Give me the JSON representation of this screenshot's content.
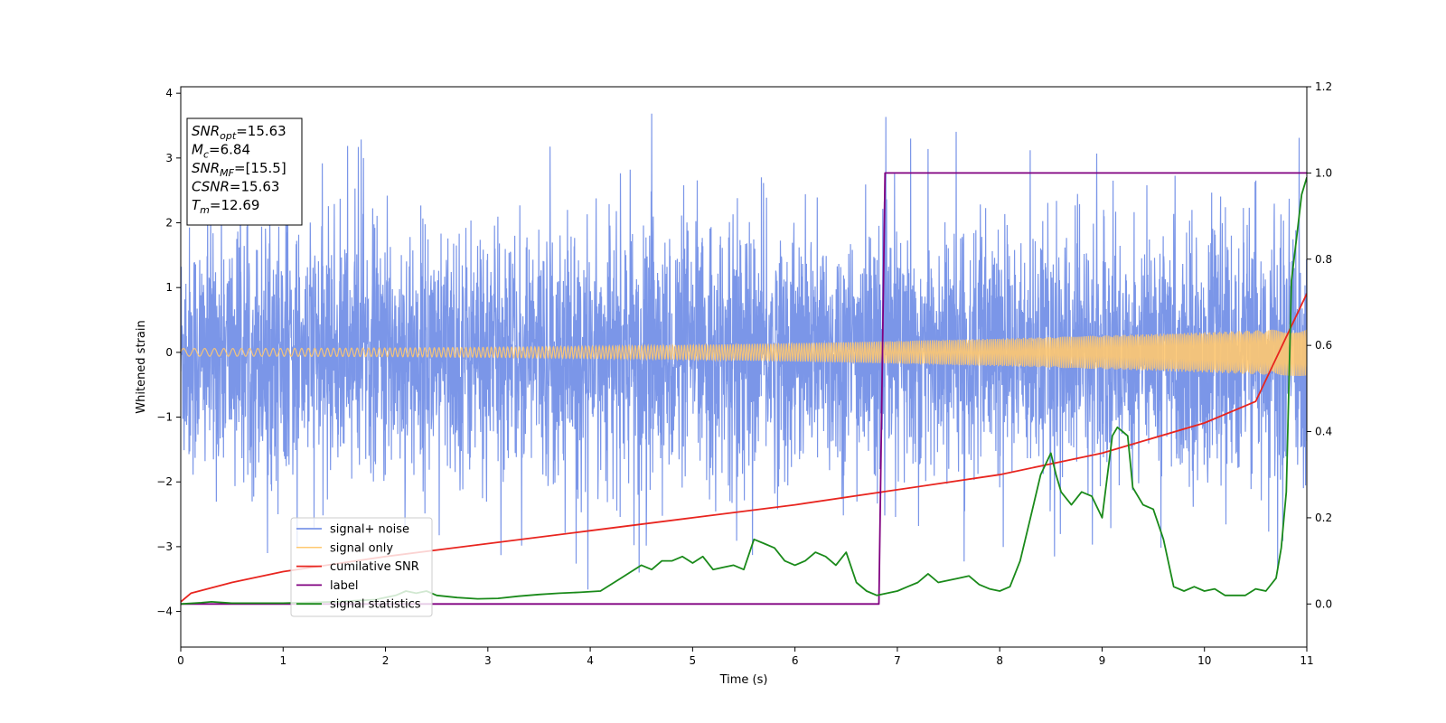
{
  "chart_data": {
    "type": "line",
    "xlabel": "Time (s)",
    "ylabel": "Whitened strain",
    "xlim": [
      0,
      11
    ],
    "ylim_left": [
      -4.55,
      4.1
    ],
    "ylim_right": [
      -0.1,
      1.2
    ],
    "x_ticks": [
      0,
      1,
      2,
      3,
      4,
      5,
      6,
      7,
      8,
      9,
      10,
      11
    ],
    "y_ticks_left": [
      -4,
      -3,
      -2,
      -1,
      0,
      1,
      2,
      3,
      4
    ],
    "y_ticks_right": [
      0.0,
      0.2,
      0.4,
      0.6,
      0.8,
      1.0,
      1.2
    ],
    "grid": false,
    "legend_placement": "lower-left",
    "annotation": [
      {
        "main": "SNR",
        "sub": "opt",
        "value": "=15.63"
      },
      {
        "main": "M",
        "sub": "c",
        "value": "=6.84"
      },
      {
        "main": "SNR",
        "sub": "MF",
        "value": "=[15.5]"
      },
      {
        "main": "CSNR",
        "sub": "",
        "value": "=15.63"
      },
      {
        "main": "T",
        "sub": "m",
        "value": "=12.69"
      }
    ],
    "series": [
      {
        "name": "signal+ noise",
        "color": "#7b96e8",
        "axis": "left",
        "kind": "noise",
        "std": 0.95,
        "spikes_max": 3.7,
        "spikes_min": -4.2
      },
      {
        "name": "signal only",
        "color": "#ffc870",
        "axis": "left",
        "kind": "chirp",
        "amplitude_start": 0.06,
        "amplitude_end": 0.37
      },
      {
        "name": "cumilative SNR",
        "color": "#e8251f",
        "axis": "right",
        "x": [
          0,
          0.1,
          0.5,
          1,
          2,
          3,
          4,
          5,
          6,
          7,
          8,
          9,
          10,
          10.5,
          11
        ],
        "y": [
          0.005,
          0.025,
          0.05,
          0.075,
          0.11,
          0.14,
          0.17,
          0.2,
          0.23,
          0.265,
          0.3,
          0.35,
          0.42,
          0.47,
          0.72
        ]
      },
      {
        "name": "label",
        "color": "#800080",
        "axis": "right",
        "x": [
          0,
          6.82,
          6.88,
          11
        ],
        "y": [
          0.0,
          0.0,
          1.0,
          1.0
        ]
      },
      {
        "name": "signal statistics",
        "color": "#1a8a1a",
        "axis": "right",
        "x": [
          0,
          0.2,
          0.3,
          0.5,
          1,
          1.5,
          1.9,
          2.1,
          2.2,
          2.3,
          2.4,
          2.5,
          2.7,
          2.9,
          3.1,
          3.3,
          3.5,
          3.7,
          3.9,
          4.1,
          4.3,
          4.5,
          4.6,
          4.7,
          4.8,
          4.9,
          5.0,
          5.1,
          5.2,
          5.3,
          5.4,
          5.5,
          5.6,
          5.7,
          5.8,
          5.9,
          6.0,
          6.1,
          6.2,
          6.3,
          6.4,
          6.5,
          6.6,
          6.7,
          6.8,
          6.9,
          7.0,
          7.1,
          7.2,
          7.3,
          7.4,
          7.5,
          7.6,
          7.7,
          7.8,
          7.9,
          8.0,
          8.1,
          8.2,
          8.3,
          8.4,
          8.5,
          8.55,
          8.6,
          8.7,
          8.8,
          8.9,
          9.0,
          9.1,
          9.15,
          9.2,
          9.25,
          9.3,
          9.4,
          9.5,
          9.6,
          9.7,
          9.8,
          9.9,
          10.0,
          10.1,
          10.2,
          10.3,
          10.4,
          10.5,
          10.6,
          10.7,
          10.75,
          10.8,
          10.85,
          10.9,
          10.95,
          11.0
        ],
        "y": [
          0.0,
          0.003,
          0.005,
          0.002,
          0.002,
          0.005,
          0.01,
          0.02,
          0.03,
          0.025,
          0.03,
          0.02,
          0.015,
          0.012,
          0.013,
          0.018,
          0.022,
          0.025,
          0.027,
          0.03,
          0.06,
          0.09,
          0.08,
          0.1,
          0.1,
          0.11,
          0.095,
          0.11,
          0.08,
          0.085,
          0.09,
          0.08,
          0.15,
          0.14,
          0.13,
          0.1,
          0.09,
          0.1,
          0.12,
          0.11,
          0.09,
          0.12,
          0.05,
          0.03,
          0.02,
          0.025,
          0.03,
          0.04,
          0.05,
          0.07,
          0.05,
          0.055,
          0.06,
          0.065,
          0.045,
          0.035,
          0.03,
          0.04,
          0.1,
          0.2,
          0.3,
          0.35,
          0.3,
          0.26,
          0.23,
          0.26,
          0.25,
          0.2,
          0.39,
          0.41,
          0.4,
          0.39,
          0.27,
          0.23,
          0.22,
          0.15,
          0.04,
          0.03,
          0.04,
          0.03,
          0.035,
          0.02,
          0.02,
          0.02,
          0.035,
          0.03,
          0.06,
          0.13,
          0.26,
          0.75,
          0.85,
          0.95,
          0.99
        ]
      }
    ]
  }
}
